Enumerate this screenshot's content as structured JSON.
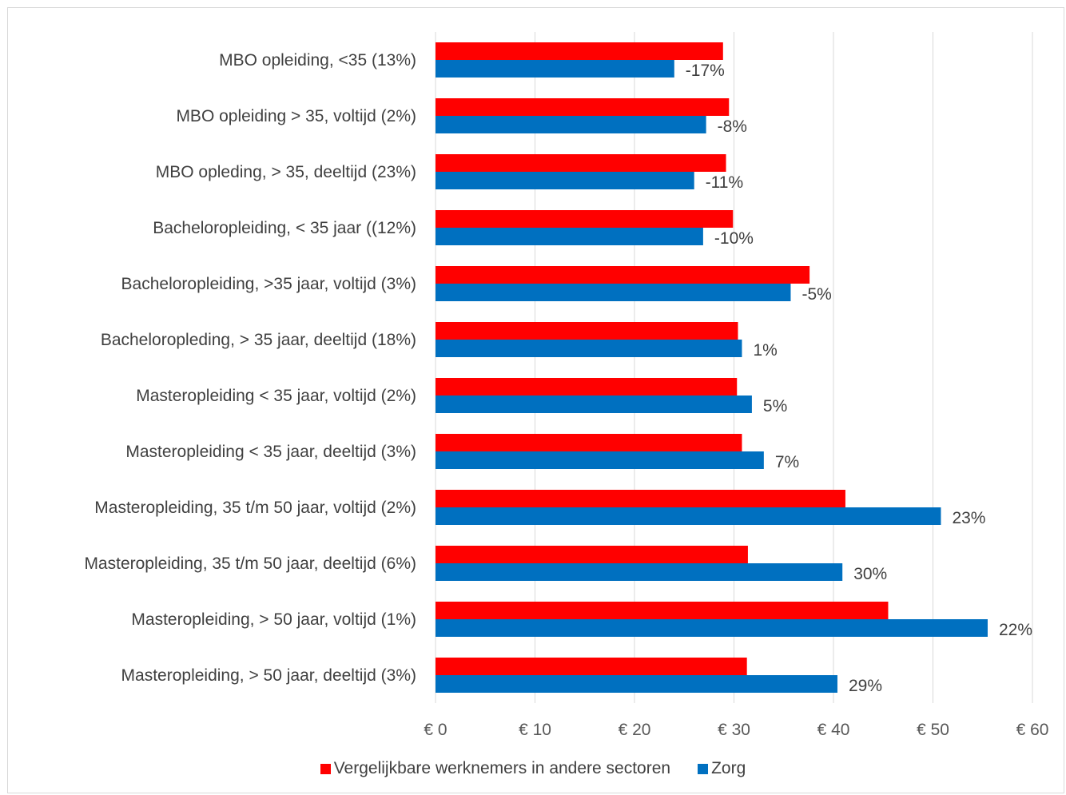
{
  "chart_data": {
    "type": "bar",
    "orientation": "horizontal",
    "title": "",
    "xlabel": "",
    "ylabel": "",
    "xlim": [
      0,
      60
    ],
    "x_ticks": [
      "€ 0",
      "€ 10",
      "€ 20",
      "€ 30",
      "€ 40",
      "€ 50",
      "€ 60"
    ],
    "grid": "vertical",
    "legend_position": "bottom",
    "categories": [
      "MBO opleiding, <35 (13%)",
      "MBO opleiding > 35, voltijd  (2%)",
      "MBO opleding, > 35, deeltijd (23%)",
      "Bacheloropleiding, < 35 jaar ((12%)",
      "Bacheloropleiding, >35 jaar, voltijd (3%)",
      "Bacheloropleding, > 35 jaar, deeltijd (18%)",
      "Masteropleiding < 35 jaar, voltijd (2%)",
      "Masteropleiding < 35 jaar, deeltijd (3%)",
      "Masteropleiding, 35 t/m 50 jaar, voltijd (2%)",
      "Masteropleiding, 35 t/m 50 jaar, deeltijd (6%)",
      "Masteropleiding, > 50 jaar, voltijd (1%)",
      "Masteropleiding, > 50 jaar, deeltijd (3%)"
    ],
    "series": [
      {
        "name": "Vergelijkbare werknemers in andere sectoren",
        "color": "#ff0000",
        "values": [
          28.9,
          29.5,
          29.2,
          29.9,
          37.6,
          30.4,
          30.3,
          30.8,
          41.2,
          31.4,
          45.5,
          31.3
        ]
      },
      {
        "name": "Zorg",
        "color": "#0070c0",
        "values": [
          24.0,
          27.2,
          26.0,
          26.9,
          35.7,
          30.8,
          31.8,
          33.0,
          50.8,
          40.9,
          55.5,
          40.4
        ],
        "data_labels": [
          "-17%",
          "-8%",
          "-11%",
          "-10%",
          "-5%",
          "1%",
          "5%",
          "7%",
          "23%",
          "30%",
          "22%",
          "29%"
        ]
      }
    ]
  }
}
